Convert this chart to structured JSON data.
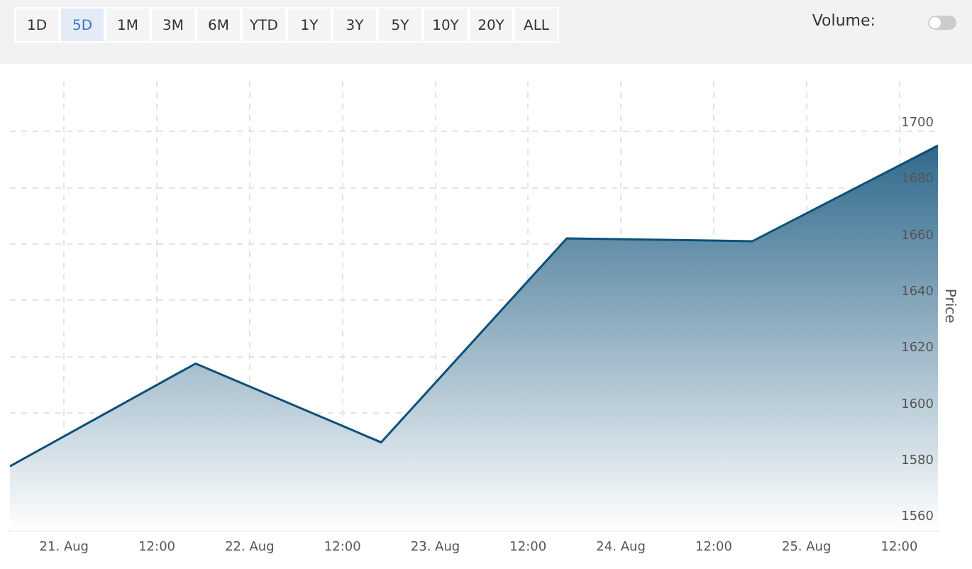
{
  "chart_data": {
    "type": "area",
    "y2label": "Price",
    "annotations": [
      "1D",
      "5D",
      "1M",
      "3M",
      "6M",
      "YTD",
      "1Y",
      "3Y",
      "5Y",
      "10Y",
      "20Y",
      "ALL",
      "Volume:"
    ],
    "x": [
      "--08-20T17:00",
      "--08-21T17:00",
      "--08-22T17:00",
      "--08-23T17:00",
      "--08-24T17:00",
      "--08-25T17:00"
    ],
    "series": [
      {
        "color": "#0d5078",
        "axis": "y2",
        "values": [
          1581,
          1617.5,
          1589.5,
          1662,
          1661,
          1695
        ]
      }
    ],
    "xlim": [
      "--08-20T17:00",
      "--08-25T17:00"
    ],
    "xticks": [
      {
        "value": "--08-21T00:00",
        "label": "21. Aug"
      },
      {
        "value": "--08-21T12:00",
        "label": "12:00"
      },
      {
        "value": "--08-22T00:00",
        "label": "22. Aug"
      },
      {
        "value": "--08-22T12:00",
        "label": "12:00"
      },
      {
        "value": "--08-23T00:00",
        "label": "23. Aug"
      },
      {
        "value": "--08-23T12:00",
        "label": "12:00"
      },
      {
        "value": "--08-24T00:00",
        "label": "24. Aug"
      },
      {
        "value": "--08-24T12:00",
        "label": "12:00"
      },
      {
        "value": "--08-25T00:00",
        "label": "25. Aug"
      },
      {
        "value": "--08-25T12:00",
        "label": "12:00"
      }
    ],
    "y2lim": [
      1558,
      1718
    ],
    "y2ticks": [
      1560,
      1580,
      1600,
      1620,
      1640,
      1660,
      1680,
      1700
    ],
    "grid": true,
    "legend": false,
    "marker": "none",
    "line_style": "solid"
  }
}
